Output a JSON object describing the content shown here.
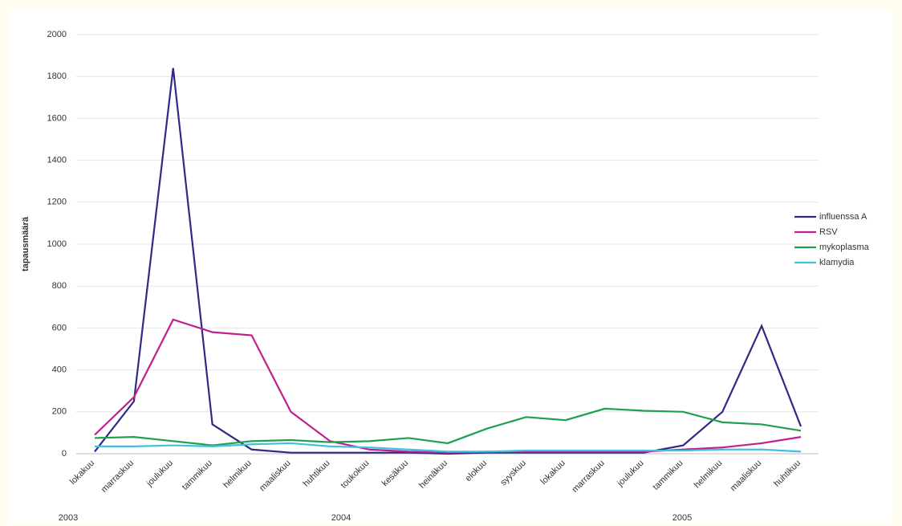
{
  "chart_data": {
    "type": "line",
    "y_label": "tapausmäärä",
    "categories": [
      "lokakuu",
      "marraskuu",
      "joulukuu",
      "tammikuu",
      "helmikuu",
      "maaliskuu",
      "huhtikuu",
      "toukokuu",
      "kesäkuu",
      "heinäkuu",
      "elokuu",
      "syyskuu",
      "lokakuu",
      "marraskuu",
      "joulukuu",
      "tammikuu",
      "helmikuu",
      "maaliskuu",
      "huhtikuu"
    ],
    "years": [
      "2003",
      "2004",
      "2005"
    ],
    "series": [
      {
        "name": "influenssa A",
        "color": "#2e2a86",
        "values": [
          10,
          250,
          1840,
          140,
          20,
          5,
          5,
          5,
          5,
          0,
          5,
          5,
          5,
          5,
          5,
          40,
          200,
          610,
          130
        ]
      },
      {
        "name": "RSV",
        "color": "#c0208a",
        "values": [
          90,
          270,
          640,
          580,
          565,
          200,
          60,
          20,
          10,
          5,
          10,
          10,
          10,
          10,
          10,
          20,
          30,
          50,
          80
        ]
      },
      {
        "name": "mykoplasma",
        "color": "#1fa050",
        "values": [
          75,
          80,
          60,
          40,
          60,
          65,
          55,
          60,
          75,
          50,
          120,
          175,
          160,
          215,
          205,
          200,
          150,
          140,
          110
        ]
      },
      {
        "name": "klamydia",
        "color": "#40c0e0",
        "values": [
          35,
          35,
          40,
          35,
          45,
          50,
          35,
          30,
          20,
          10,
          10,
          15,
          15,
          15,
          15,
          15,
          20,
          20,
          10
        ]
      }
    ],
    "ylim": [
      0,
      2000
    ],
    "yticks": [
      0,
      200,
      400,
      600,
      800,
      1000,
      1200,
      1400,
      1600,
      1800,
      2000
    ],
    "grid": true,
    "legend": "right"
  }
}
